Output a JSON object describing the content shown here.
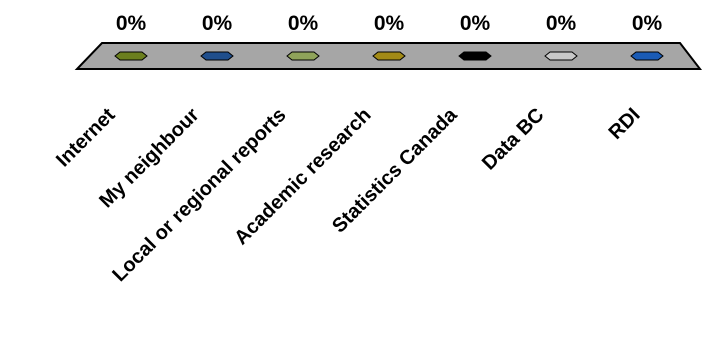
{
  "chart_data": {
    "type": "bar",
    "subtype": "3d-column",
    "categories": [
      "Internet",
      "My neighbour",
      "Local or regional reports",
      "Academic research",
      "Statistics Canada",
      "Data BC",
      "RDI"
    ],
    "values": [
      0,
      0,
      0,
      0,
      0,
      0,
      0
    ],
    "data_labels": [
      "0%",
      "0%",
      "0%",
      "0%",
      "0%",
      "0%",
      "0%"
    ],
    "value_format": "percent",
    "ylim": [
      0,
      1
    ],
    "colors": [
      "#6b7f1e",
      "#1f4e8c",
      "#8fa35a",
      "#a28a16",
      "#000000",
      "#c8c8c8",
      "#1a5bb5"
    ],
    "floor_color": "#a6a6a6",
    "title": "",
    "xlabel": "",
    "ylabel": "",
    "grid": false,
    "legend": "none"
  }
}
